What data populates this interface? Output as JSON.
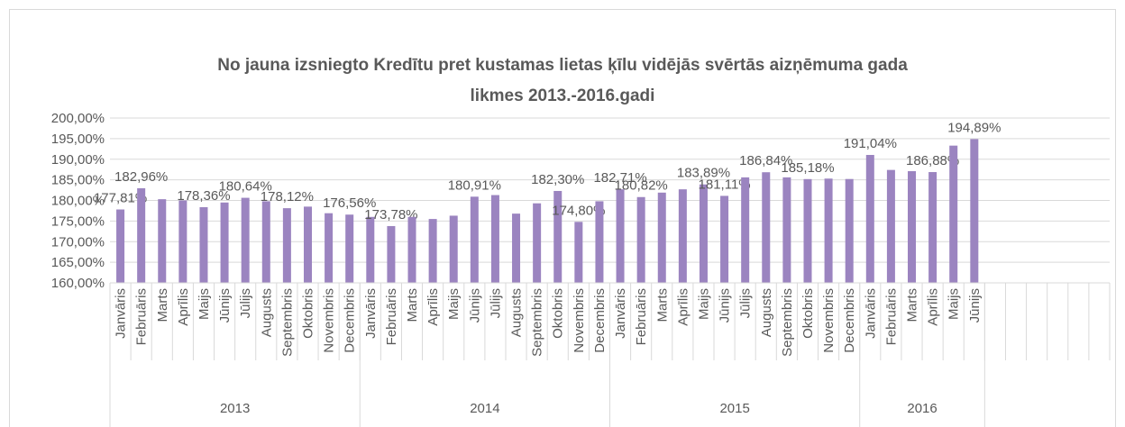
{
  "chart_data": {
    "type": "bar",
    "title": [
      "No jauna izsniegto Kredītu pret kustamas lietas ķīlu vidējās svērtās aizņēmuma gada",
      "likmes 2013.-2016.gadi"
    ],
    "color": "#9b84c0",
    "ylim": [
      160,
      200
    ],
    "yticks": [
      {
        "value": 160,
        "label": "160,00%"
      },
      {
        "value": 165,
        "label": "165,00%"
      },
      {
        "value": 170,
        "label": "170,00%"
      },
      {
        "value": 175,
        "label": "175,00%"
      },
      {
        "value": 180,
        "label": "180,00%"
      },
      {
        "value": 185,
        "label": "185,00%"
      },
      {
        "value": 190,
        "label": "190,00%"
      },
      {
        "value": 195,
        "label": "195,00%"
      },
      {
        "value": 200,
        "label": "200,00%"
      }
    ],
    "grid": true,
    "groups": [
      {
        "label": "2013",
        "categories": [
          "Janvāris",
          "Februāris",
          "Marts",
          "Aprīlis",
          "Maijs",
          "Jūnijs",
          "Jūlijs",
          "Augusts",
          "Septembris",
          "Oktobris",
          "Novembris",
          "Decembris"
        ],
        "values": [
          177.81,
          182.96,
          180.3,
          180.0,
          178.36,
          179.5,
          180.64,
          179.8,
          178.12,
          178.5,
          176.9,
          176.56
        ],
        "value_labels": [
          "177,81%",
          "182,96%",
          null,
          null,
          "178,36%",
          null,
          "180,64%",
          null,
          "178,12%",
          null,
          null,
          "176,56%"
        ]
      },
      {
        "label": "2014",
        "categories": [
          "Janvāris",
          "Februāris",
          "Marts",
          "Aprīlis",
          "Maijs",
          "Jūnijs",
          "Jūlijs",
          "Augusts",
          "Septembris",
          "Oktobris",
          "Novembris",
          "Decembris"
        ],
        "values": [
          176.0,
          173.78,
          176.0,
          175.5,
          176.3,
          180.91,
          181.3,
          176.8,
          179.3,
          182.3,
          174.8,
          179.8
        ],
        "value_labels": [
          null,
          "173,78%",
          null,
          null,
          null,
          "180,91%",
          null,
          null,
          null,
          "182,30%",
          "174,80%",
          null
        ]
      },
      {
        "label": "2015",
        "categories": [
          "Janvāris",
          "Februāris",
          "Marts",
          "Aprīlis",
          "Maijs",
          "Jūnijs",
          "Jūlijs",
          "Augusts",
          "Septembris",
          "Oktobris",
          "Novembris",
          "Decembris"
        ],
        "values": [
          182.71,
          180.82,
          181.9,
          182.7,
          183.89,
          181.11,
          185.6,
          186.84,
          185.6,
          185.18,
          185.3,
          185.2
        ],
        "value_labels": [
          "182,71%",
          "180,82%",
          null,
          null,
          "183,89%",
          "181,11%",
          null,
          "186,84%",
          null,
          "185,18%",
          null,
          null
        ]
      },
      {
        "label": "2016",
        "categories": [
          "Janvāris",
          "Februāris",
          "Marts",
          "Aprīlis",
          "Maijs",
          "Jūnijs"
        ],
        "values": [
          191.04,
          187.4,
          187.1,
          186.88,
          193.3,
          194.89
        ],
        "value_labels": [
          "191,04%",
          null,
          null,
          "186,88%",
          null,
          "194,89%"
        ]
      },
      {
        "label": null,
        "categories": [
          null,
          null,
          null,
          null,
          null,
          null
        ],
        "values": [
          null,
          null,
          null,
          null,
          null,
          null
        ],
        "value_labels": [
          null,
          null,
          null,
          null,
          null,
          null
        ]
      }
    ]
  }
}
